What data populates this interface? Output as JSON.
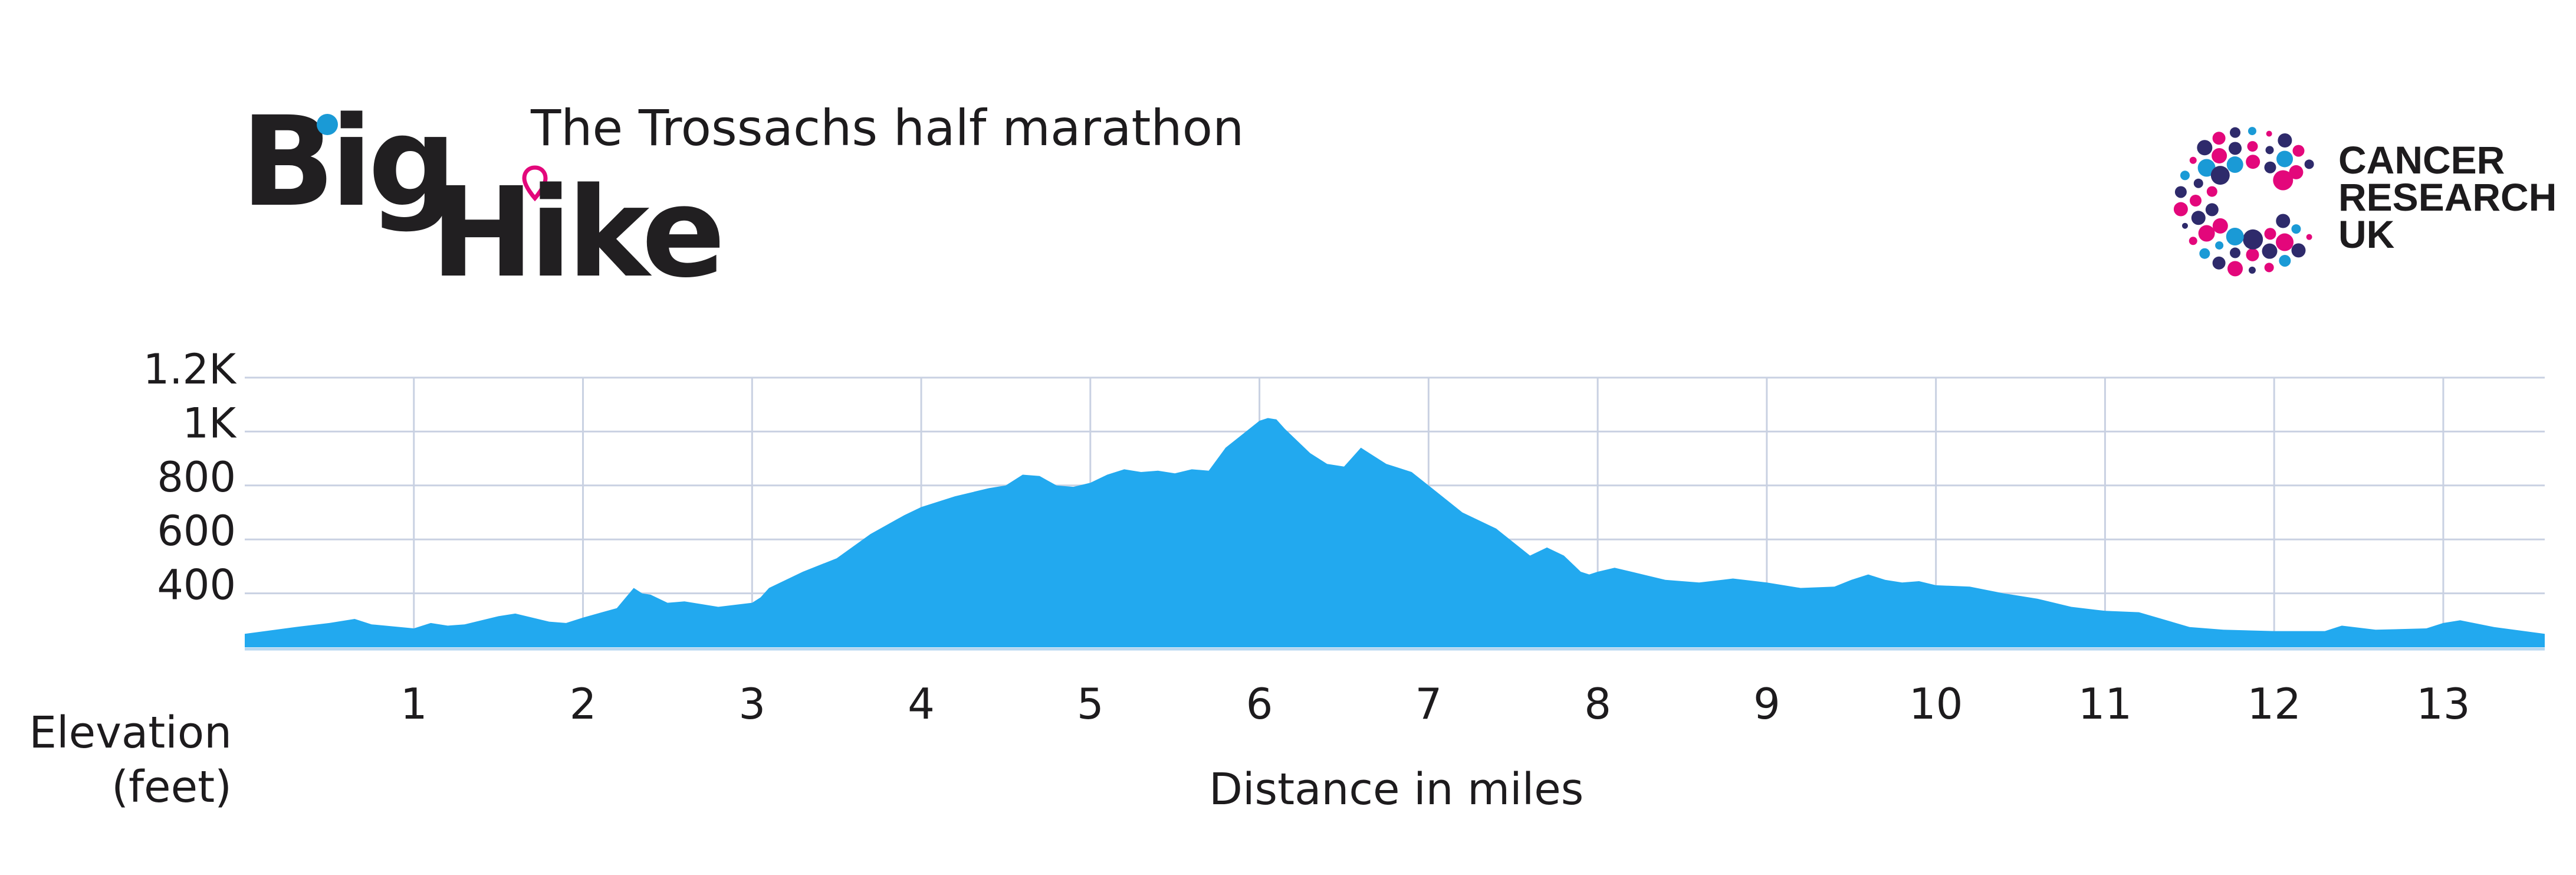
{
  "brand": {
    "logo_word_1": "Big",
    "logo_word_2": "Hike",
    "event_title": "The Trossachs half marathon",
    "charity_lines": [
      "CANCER",
      "RESEARCH",
      "UK"
    ],
    "colors": {
      "accent_blue": "#1a9ad6",
      "accent_pink": "#e3077b",
      "navy": "#2e2a6b",
      "area_fill": "#22a9ef"
    }
  },
  "chart_data": {
    "type": "area",
    "xlabel": "Distance in miles",
    "ylabel": "Elevation (feet)",
    "ylabel_lines": [
      "Elevation",
      "(feet)"
    ],
    "xlim": [
      0,
      13.6
    ],
    "ylim": [
      200,
      1200
    ],
    "x_ticks": [
      1,
      2,
      3,
      4,
      5,
      6,
      7,
      8,
      9,
      10,
      11,
      12,
      13
    ],
    "x_tick_labels": [
      "1",
      "2",
      "3",
      "4",
      "5",
      "6",
      "7",
      "8",
      "9",
      "10",
      "11",
      "12",
      "13"
    ],
    "y_ticks": [
      400,
      600,
      800,
      1000,
      1200
    ],
    "y_tick_labels": [
      "400",
      "600",
      "800",
      "1K",
      "1.2K"
    ],
    "grid": true,
    "x": [
      0,
      0.3,
      0.5,
      0.65,
      0.75,
      1.0,
      1.1,
      1.2,
      1.3,
      1.5,
      1.6,
      1.8,
      1.9,
      2.0,
      2.2,
      2.3,
      2.35,
      2.4,
      2.5,
      2.6,
      2.7,
      2.8,
      3.0,
      3.05,
      3.1,
      3.3,
      3.5,
      3.7,
      3.9,
      4.0,
      4.2,
      4.4,
      4.5,
      4.6,
      4.7,
      4.8,
      4.9,
      5.0,
      5.1,
      5.2,
      5.3,
      5.4,
      5.5,
      5.6,
      5.7,
      5.8,
      5.9,
      6.0,
      6.05,
      6.1,
      6.15,
      6.2,
      6.3,
      6.4,
      6.5,
      6.6,
      6.7,
      6.75,
      6.8,
      6.9,
      7.0,
      7.2,
      7.4,
      7.6,
      7.7,
      7.8,
      7.9,
      7.95,
      8.0,
      8.1,
      8.2,
      8.4,
      8.6,
      8.8,
      9.0,
      9.2,
      9.4,
      9.5,
      9.6,
      9.7,
      9.8,
      9.9,
      10.0,
      10.2,
      10.4,
      10.6,
      10.8,
      11.0,
      11.2,
      11.5,
      11.7,
      12.0,
      12.3,
      12.4,
      12.6,
      12.9,
      13.0,
      13.1,
      13.3,
      13.6
    ],
    "y": [
      250,
      275,
      290,
      305,
      285,
      270,
      290,
      280,
      285,
      315,
      325,
      295,
      290,
      310,
      345,
      420,
      400,
      395,
      365,
      370,
      360,
      350,
      365,
      385,
      420,
      480,
      530,
      620,
      690,
      720,
      760,
      790,
      800,
      840,
      835,
      800,
      795,
      810,
      840,
      860,
      850,
      855,
      845,
      860,
      855,
      940,
      990,
      1040,
      1050,
      1045,
      1010,
      980,
      920,
      880,
      870,
      940,
      900,
      880,
      870,
      850,
      800,
      700,
      640,
      540,
      570,
      540,
      480,
      470,
      480,
      495,
      480,
      450,
      440,
      455,
      440,
      420,
      425,
      450,
      470,
      450,
      440,
      445,
      430,
      425,
      400,
      380,
      350,
      335,
      330,
      275,
      265,
      260,
      260,
      280,
      265,
      270,
      290,
      300,
      275,
      250
    ]
  }
}
